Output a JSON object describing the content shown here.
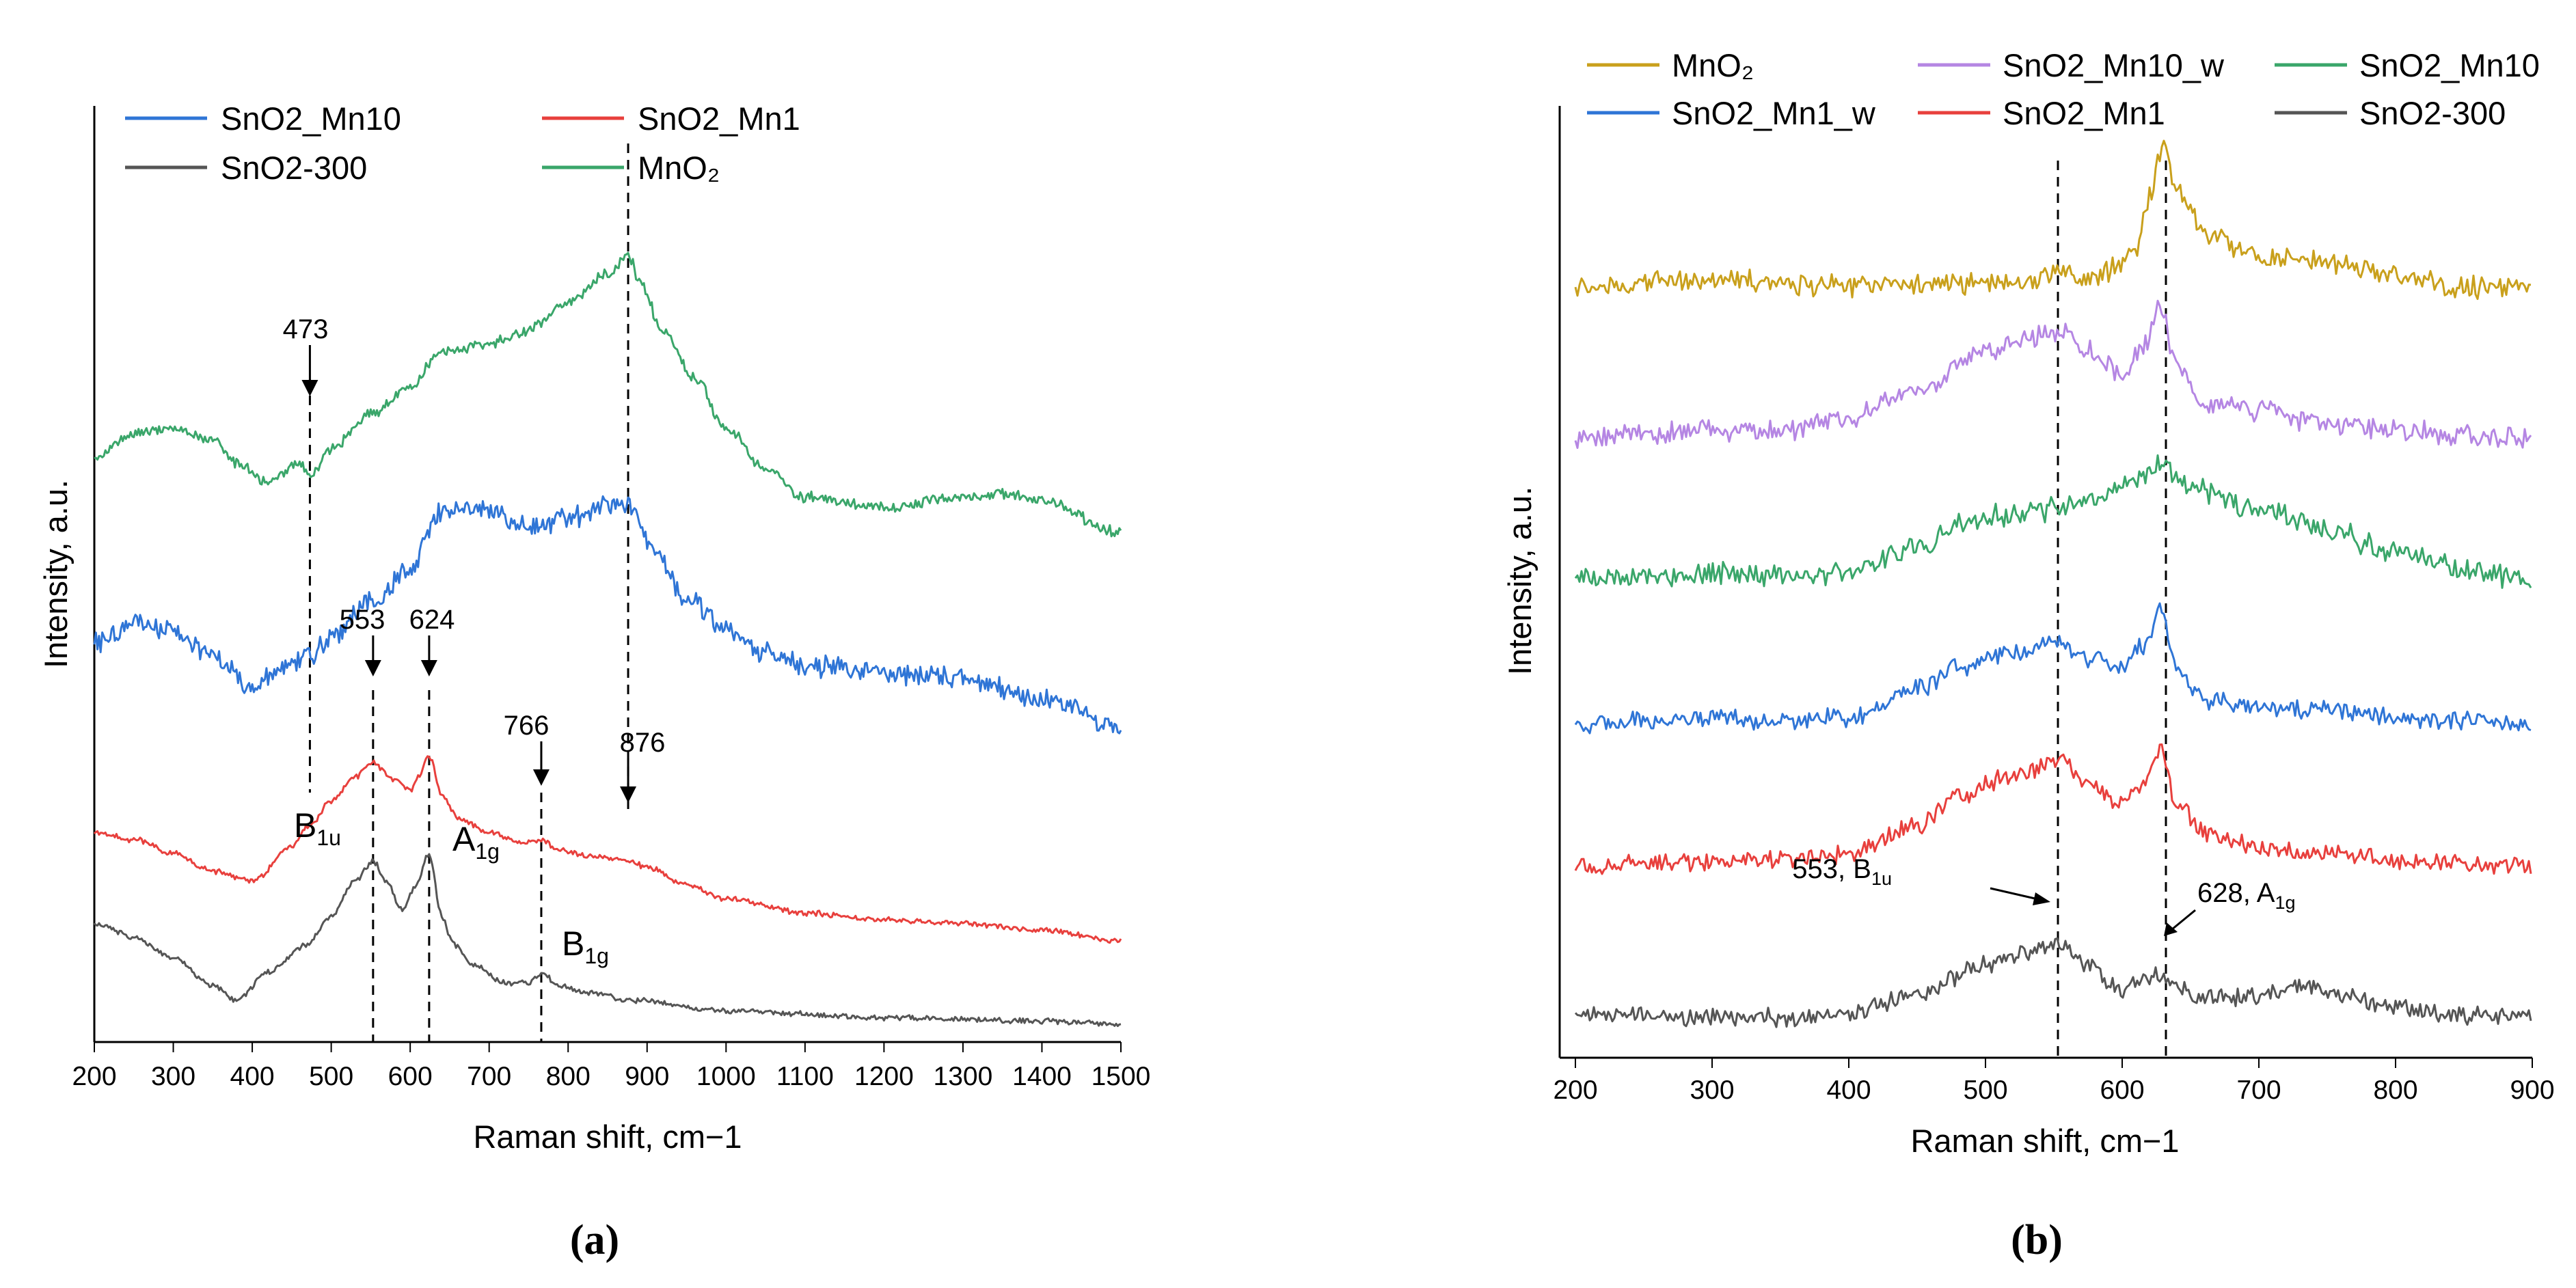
{
  "panel_labels": [
    "(a)",
    "(b)"
  ],
  "chart_data": [
    {
      "type": "line",
      "xlabel": "Raman shift, cm−1",
      "ylabel": "Intensity, a.u.",
      "xlim": [
        200,
        1500
      ],
      "xticks": [
        "200",
        "300",
        "400",
        "500",
        "600",
        "700",
        "800",
        "900",
        "1000",
        "1100",
        "1200",
        "1300",
        "1400",
        "1500"
      ],
      "legend": [
        "SnO2_Mn10",
        "SnO2_Mn1",
        "SnO2-300",
        "MnO₂"
      ],
      "series": [
        {
          "name": "MnO₂",
          "color": "#3aa66a",
          "noise": 6,
          "x": [
            200,
            250,
            300,
            350,
            380,
            420,
            460,
            473,
            500,
            550,
            600,
            640,
            700,
            750,
            800,
            850,
            876,
            890,
            920,
            960,
            1000,
            1050,
            1100,
            1200,
            1300,
            1350,
            1400,
            1500
          ],
          "y": [
            1540,
            1570,
            1580,
            1560,
            1530,
            1500,
            1530,
            1510,
            1550,
            1600,
            1640,
            1690,
            1700,
            1720,
            1760,
            1800,
            1830,
            1790,
            1720,
            1650,
            1580,
            1520,
            1480,
            1465,
            1480,
            1485,
            1475,
            1430
          ]
        },
        {
          "name": "SnO2_Mn10",
          "color": "#2f75d6",
          "noise": 12,
          "x": [
            200,
            250,
            300,
            350,
            400,
            450,
            473,
            500,
            550,
            600,
            640,
            700,
            750,
            800,
            850,
            880,
            900,
            950,
            1000,
            1050,
            1100,
            1200,
            1300,
            1400,
            1500
          ],
          "y": [
            1270,
            1300,
            1290,
            1250,
            1210,
            1240,
            1250,
            1280,
            1330,
            1380,
            1460,
            1460,
            1440,
            1450,
            1470,
            1470,
            1420,
            1340,
            1290,
            1260,
            1240,
            1230,
            1220,
            1190,
            1150
          ]
        },
        {
          "name": "SnO2_Mn1",
          "color": "#e8403d",
          "noise": 3,
          "x": [
            200,
            250,
            300,
            350,
            400,
            450,
            473,
            500,
            530,
            553,
            580,
            600,
            610,
            624,
            640,
            660,
            700,
            740,
            766,
            790,
            830,
            876,
            900,
            950,
            1000,
            1100,
            1200,
            1300,
            1400,
            1500
          ],
          "y": [
            1000,
            990,
            970,
            945,
            930,
            980,
            1010,
            1045,
            1080,
            1100,
            1075,
            1060,
            1080,
            1110,
            1055,
            1020,
            1000,
            985,
            990,
            975,
            965,
            960,
            950,
            925,
            905,
            885,
            875,
            870,
            860,
            845
          ]
        },
        {
          "name": "SnO2-300",
          "color": "#555555",
          "noise": 3,
          "x": [
            200,
            250,
            300,
            350,
            380,
            420,
            470,
            500,
            530,
            553,
            570,
            590,
            605,
            624,
            640,
            655,
            680,
            720,
            750,
            766,
            790,
            830,
            880,
            1000,
            1200,
            1400,
            1500
          ],
          "y": [
            870,
            850,
            820,
            780,
            760,
            800,
            840,
            880,
            930,
            960,
            930,
            890,
            920,
            970,
            880,
            840,
            810,
            785,
            785,
            800,
            780,
            770,
            760,
            745,
            735,
            730,
            725
          ]
        }
      ],
      "annotations": [
        {
          "text": "473",
          "x": 473
        },
        {
          "text": "553",
          "x": 553
        },
        {
          "text": "624",
          "x": 624
        },
        {
          "text": "766",
          "x": 766
        },
        {
          "text": "876",
          "x": 876
        }
      ],
      "mode_labels": [
        {
          "base": "B",
          "sub": "1u"
        },
        {
          "base": "A",
          "sub": "1g"
        },
        {
          "base": "B",
          "sub": "1g"
        }
      ]
    },
    {
      "type": "line",
      "xlabel": "Raman shift, cm−1",
      "ylabel": "Intensity, a.u.",
      "xlim": [
        200,
        900
      ],
      "xticks": [
        "200",
        "300",
        "400",
        "500",
        "600",
        "700",
        "800",
        "900"
      ],
      "legend": [
        "MnO₂",
        "SnO2_Mn10_w",
        "SnO2_Mn10",
        "SnO2_Mn1_w",
        "SnO2_Mn1",
        "SnO2-300"
      ],
      "series": [
        {
          "name": "MnO₂",
          "color": "#c9a01c",
          "noise": 2.5,
          "x": [
            200,
            250,
            300,
            350,
            400,
            450,
            500,
            530,
            553,
            580,
            600,
            610,
            620,
            630,
            640,
            660,
            700,
            750,
            800,
            850,
            900
          ],
          "y": [
            10,
            11,
            12,
            11,
            10,
            11,
            11,
            12,
            13,
            13,
            16,
            22,
            35,
            50,
            38,
            25,
            18,
            17,
            13,
            10,
            10
          ]
        },
        {
          "name": "SnO2_Mn10_w",
          "color": "#b586e3",
          "noise": 2.5,
          "x": [
            200,
            250,
            300,
            350,
            400,
            450,
            500,
            530,
            553,
            575,
            600,
            615,
            628,
            640,
            660,
            700,
            750,
            800,
            850,
            900
          ],
          "y": [
            10,
            11,
            12,
            12,
            16,
            24,
            34,
            38,
            40,
            34,
            28,
            36,
            46,
            30,
            20,
            17,
            14,
            12,
            11,
            10
          ]
        },
        {
          "name": "SnO2_Mn10",
          "color": "#3aa66a",
          "noise": 2.5,
          "x": [
            200,
            250,
            300,
            350,
            400,
            450,
            500,
            553,
            580,
            600,
            630,
            650,
            700,
            750,
            800,
            850,
            900
          ],
          "y": [
            10,
            11,
            12,
            11,
            12,
            20,
            28,
            30,
            33,
            37,
            42,
            36,
            30,
            24,
            18,
            13,
            10
          ]
        },
        {
          "name": "SnO2_Mn1_w",
          "color": "#2f75d6",
          "noise": 2,
          "x": [
            200,
            250,
            300,
            350,
            400,
            450,
            480,
            520,
            553,
            565,
            580,
            600,
            615,
            628,
            640,
            660,
            700,
            750,
            800,
            850,
            900
          ],
          "y": [
            10,
            11,
            12,
            11,
            12,
            20,
            26,
            30,
            34,
            30,
            28,
            26,
            32,
            42,
            26,
            17,
            15,
            14,
            12,
            11,
            10
          ]
        },
        {
          "name": "SnO2_Mn1",
          "color": "#e8403d",
          "noise": 2,
          "x": [
            200,
            250,
            300,
            350,
            400,
            450,
            480,
            520,
            553,
            575,
            600,
            615,
            628,
            640,
            660,
            700,
            750,
            800,
            850,
            900
          ],
          "y": [
            10,
            11,
            12,
            12,
            14,
            22,
            30,
            36,
            40,
            34,
            28,
            34,
            44,
            28,
            20,
            16,
            14,
            12,
            11,
            10
          ]
        },
        {
          "name": "SnO2-300",
          "color": "#555555",
          "noise": 2,
          "x": [
            200,
            250,
            300,
            350,
            400,
            450,
            500,
            530,
            553,
            575,
            600,
            615,
            628,
            640,
            660,
            700,
            730,
            760,
            800,
            850,
            900
          ],
          "y": [
            10,
            10,
            9,
            9,
            10,
            16,
            24,
            28,
            30,
            24,
            17,
            20,
            22,
            18,
            14,
            15,
            18,
            16,
            12,
            10,
            10
          ]
        }
      ],
      "annotations": [
        {
          "text": "553, B",
          "sub": "1u",
          "x": 553
        },
        {
          "text": "628, A",
          "sub": "1g",
          "x": 628
        }
      ]
    }
  ]
}
